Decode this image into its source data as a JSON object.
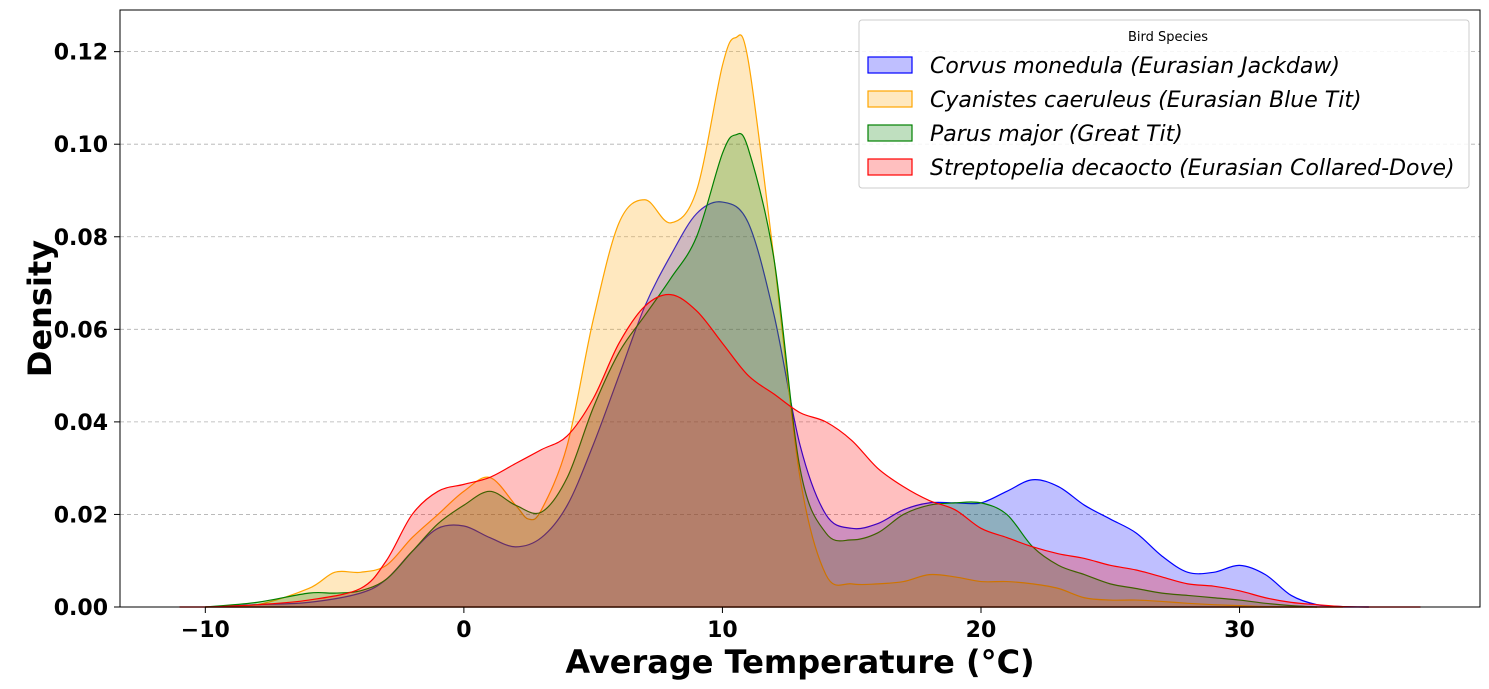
{
  "chart_data": {
    "type": "area",
    "xlabel": "Average Temperature (°C)",
    "ylabel": "Density",
    "xlim": [
      -13.3,
      39.3
    ],
    "ylim": [
      0,
      0.129
    ],
    "xticks": [
      -10,
      0,
      10,
      20,
      30
    ],
    "yticks": [
      0.0,
      0.02,
      0.04,
      0.06,
      0.08,
      0.1,
      0.12
    ],
    "xtick_labels": [
      "−10",
      "0",
      "10",
      "20",
      "30"
    ],
    "ytick_labels": [
      "0.00",
      "0.02",
      "0.04",
      "0.06",
      "0.08",
      "0.10",
      "0.12"
    ],
    "grid": "y dashed",
    "legend": {
      "title": "Bird Species",
      "placement": "top-right"
    },
    "series": [
      {
        "name": "Corvus monedula (Eurasian Jackdaw)",
        "color": "#0000ff",
        "fill": "#0000ff",
        "fill_opacity": 0.25,
        "x": [
          -10,
          -8,
          -6,
          -4,
          -3,
          -2,
          -1,
          0,
          1,
          2,
          3,
          4,
          5,
          6,
          7,
          8,
          9,
          10,
          11,
          12,
          13,
          14,
          15,
          16,
          17,
          18,
          19,
          20,
          21,
          22,
          23,
          24,
          25,
          26,
          27,
          28,
          29,
          30,
          31,
          32,
          33,
          34,
          35
        ],
        "y": [
          0.0,
          0.0005,
          0.001,
          0.003,
          0.006,
          0.012,
          0.017,
          0.0175,
          0.015,
          0.013,
          0.015,
          0.022,
          0.035,
          0.05,
          0.065,
          0.076,
          0.085,
          0.0875,
          0.083,
          0.063,
          0.035,
          0.02,
          0.017,
          0.018,
          0.021,
          0.0225,
          0.0225,
          0.0225,
          0.025,
          0.0275,
          0.026,
          0.022,
          0.019,
          0.016,
          0.011,
          0.0075,
          0.0075,
          0.009,
          0.007,
          0.0025,
          0.0005,
          0.0001,
          0.0
        ]
      },
      {
        "name": "Cyanistes caeruleus (Eurasian Blue Tit)",
        "color": "#ffa500",
        "fill": "#ffa500",
        "fill_opacity": 0.25,
        "x": [
          -10,
          -8,
          -6,
          -5,
          -4,
          -3,
          -2,
          -1,
          0,
          1,
          2,
          2.5,
          3,
          4,
          5,
          6,
          7,
          8,
          9,
          10,
          10.5,
          11,
          12,
          13,
          14,
          15,
          16,
          17,
          18,
          19,
          20,
          21,
          22,
          23,
          24,
          25,
          26,
          27,
          28,
          29,
          30,
          31,
          32,
          33,
          34
        ],
        "y": [
          0.0,
          0.0005,
          0.004,
          0.0075,
          0.0075,
          0.009,
          0.015,
          0.02,
          0.025,
          0.028,
          0.022,
          0.019,
          0.021,
          0.035,
          0.062,
          0.083,
          0.088,
          0.083,
          0.09,
          0.117,
          0.123,
          0.118,
          0.075,
          0.028,
          0.007,
          0.005,
          0.005,
          0.0055,
          0.007,
          0.0065,
          0.0055,
          0.0055,
          0.005,
          0.004,
          0.002,
          0.0015,
          0.0015,
          0.0012,
          0.0008,
          0.0005,
          0.0003,
          0.0001,
          0.0,
          0.0,
          0.0
        ]
      },
      {
        "name": "Parus major (Great Tit)",
        "color": "#008000",
        "fill": "#008000",
        "fill_opacity": 0.25,
        "x": [
          -10,
          -8,
          -6,
          -5,
          -4,
          -3,
          -2,
          -1,
          0,
          1,
          2,
          3,
          4,
          5,
          6,
          7,
          8,
          9,
          10,
          10.5,
          11,
          12,
          13,
          14,
          15,
          16,
          17,
          18,
          19,
          20,
          21,
          22,
          23,
          24,
          25,
          26,
          27,
          28,
          29,
          30,
          31,
          32,
          33
        ],
        "y": [
          0.0,
          0.001,
          0.003,
          0.003,
          0.0035,
          0.006,
          0.012,
          0.018,
          0.022,
          0.025,
          0.022,
          0.0205,
          0.028,
          0.043,
          0.055,
          0.063,
          0.071,
          0.08,
          0.098,
          0.102,
          0.099,
          0.075,
          0.03,
          0.016,
          0.0145,
          0.016,
          0.02,
          0.022,
          0.0225,
          0.0225,
          0.02,
          0.013,
          0.009,
          0.007,
          0.005,
          0.004,
          0.003,
          0.0025,
          0.002,
          0.0015,
          0.0008,
          0.0003,
          0.0
        ]
      },
      {
        "name": "Streptopelia decaocto (Eurasian Collared-Dove)",
        "color": "#ff0000",
        "fill": "#ff0000",
        "fill_opacity": 0.25,
        "x": [
          -11,
          -10,
          -8,
          -6,
          -4,
          -3,
          -2,
          -1,
          0,
          1,
          2,
          3,
          4,
          5,
          6,
          7,
          8,
          9,
          10,
          11,
          12,
          13,
          14,
          15,
          16,
          17,
          18,
          19,
          20,
          21,
          22,
          23,
          24,
          25,
          26,
          27,
          28,
          29,
          30,
          31,
          32,
          33,
          34,
          35,
          36,
          37
        ],
        "y": [
          0.0,
          0.0,
          0.0005,
          0.0015,
          0.004,
          0.01,
          0.02,
          0.025,
          0.0265,
          0.028,
          0.031,
          0.034,
          0.037,
          0.045,
          0.057,
          0.065,
          0.0675,
          0.064,
          0.057,
          0.05,
          0.046,
          0.042,
          0.04,
          0.036,
          0.03,
          0.026,
          0.023,
          0.021,
          0.017,
          0.015,
          0.013,
          0.0115,
          0.0105,
          0.009,
          0.008,
          0.0065,
          0.005,
          0.0045,
          0.0035,
          0.002,
          0.001,
          0.0005,
          0.0001,
          0.0,
          0.0,
          0.0
        ]
      }
    ]
  }
}
